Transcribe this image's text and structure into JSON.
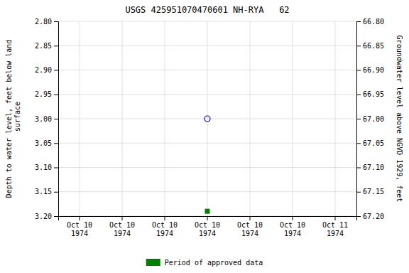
{
  "chart_data": {
    "type": "scatter",
    "title": "USGS 425951070470601 NH-RYA   62",
    "y_label": "Depth to water level, feet below land\n surface",
    "y2_label": "Groundwater level above NGVD 1929, feet",
    "categories": [
      "Oct 10\n1974",
      "Oct 10\n1974",
      "Oct 10\n1974",
      "Oct 10\n1974",
      "Oct 10\n1974",
      "Oct 10\n1974",
      "Oct 11\n1974"
    ],
    "series": [
      {
        "color": "blue",
        "marker": "open_circle",
        "values": [
          null,
          null,
          null,
          3.0,
          null,
          null,
          null
        ]
      },
      {
        "name": "Period of approved data",
        "color": "#008000",
        "marker": "square",
        "values": [
          null,
          null,
          null,
          3.19,
          null,
          null,
          null
        ]
      }
    ],
    "ylim": [
      3.2,
      2.8
    ],
    "yticks": [
      {
        "value": 2.8,
        "label": "2.80"
      },
      {
        "value": 2.85,
        "label": "2.85"
      },
      {
        "value": 2.9,
        "label": "2.90"
      },
      {
        "value": 2.95,
        "label": "2.95"
      },
      {
        "value": 3.0,
        "label": "3.00"
      },
      {
        "value": 3.05,
        "label": "3.05"
      },
      {
        "value": 3.1,
        "label": "3.10"
      },
      {
        "value": 3.15,
        "label": "3.15"
      },
      {
        "value": 3.2,
        "label": "3.20"
      }
    ],
    "y2lim": [
      67.2,
      66.8
    ],
    "y2ticks": [
      {
        "value": 67.2,
        "label": "67.20"
      },
      {
        "value": 67.15,
        "label": "67.15"
      },
      {
        "value": 67.1,
        "label": "67.10"
      },
      {
        "value": 67.05,
        "label": "67.05"
      },
      {
        "value": 67.0,
        "label": "67.00"
      },
      {
        "value": 66.95,
        "label": "66.95"
      },
      {
        "value": 66.9,
        "label": "66.90"
      },
      {
        "value": 66.85,
        "label": "66.85"
      },
      {
        "value": 66.8,
        "label": "66.80"
      }
    ],
    "grid": true,
    "legend": "bottom"
  }
}
